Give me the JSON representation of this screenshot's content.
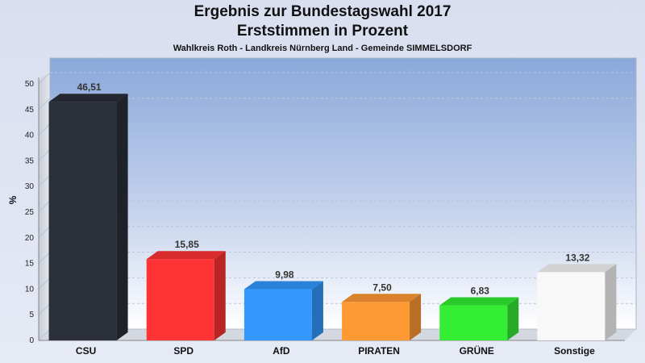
{
  "chart_data": {
    "type": "bar",
    "title": "Ergebnis zur Bundestagswahl 2017",
    "subtitle": "Erststimmen in Prozent",
    "caption": "Wahlkreis Roth - Landkreis Nürnberg Land - Gemeinde SIMMELSDORF",
    "ylabel": "%",
    "xlabel": "",
    "ylim": [
      0,
      50
    ],
    "yticks": [
      0,
      5,
      10,
      15,
      20,
      25,
      30,
      35,
      40,
      45,
      50
    ],
    "categories": [
      "CSU",
      "SPD",
      "AfD",
      "PIRATEN",
      "GRÜNE",
      "Sonstige"
    ],
    "values": [
      46.51,
      15.85,
      9.98,
      7.5,
      6.83,
      13.32
    ],
    "value_labels": [
      "46,51",
      "15,85",
      "9,98",
      "7,50",
      "6,83",
      "13,32"
    ],
    "colors": [
      "#2b2f38",
      "#ff3333",
      "#3399ff",
      "#ff9933",
      "#33ee33",
      "#f8f8f8"
    ],
    "grid": true
  }
}
